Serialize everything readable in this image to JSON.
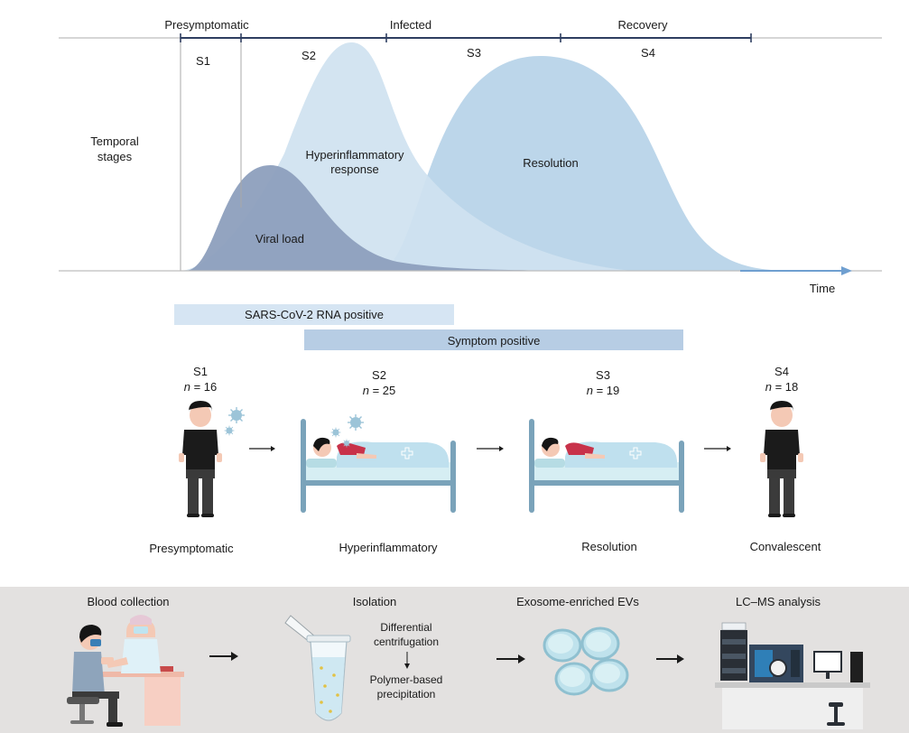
{
  "timeline": {
    "phases": [
      "Presymptomatic",
      "Infected",
      "Recovery"
    ],
    "stages": [
      "S1",
      "S2",
      "S3",
      "S4"
    ],
    "row_label_line1": "Temporal",
    "row_label_line2": "stages",
    "time_label": "Time"
  },
  "curves": {
    "viral_load": "Viral load",
    "hyper_line1": "Hyperinflammatory",
    "hyper_line2": "response",
    "resolution": "Resolution",
    "colors": {
      "viral": "#8d9fbd",
      "hyper": "#cfe2f0",
      "resolution": "#bcd6ea"
    }
  },
  "bars": {
    "rna": "SARS-CoV-2 RNA positive",
    "symptom": "Symptom positive",
    "colors": {
      "rna": "#d6e5f3",
      "symptom": "#b7cde4"
    }
  },
  "stage_groups": [
    {
      "stage": "S1",
      "n_label": "n",
      "n_value": "= 16",
      "caption": "Presymptomatic"
    },
    {
      "stage": "S2",
      "n_label": "n",
      "n_value": "= 25",
      "caption": "Hyperinflammatory"
    },
    {
      "stage": "S3",
      "n_label": "n",
      "n_value": "= 19",
      "caption": "Resolution"
    },
    {
      "stage": "S4",
      "n_label": "n",
      "n_value": "= 18",
      "caption": "Convalescent"
    }
  ],
  "workflow": {
    "steps": [
      "Blood collection",
      "Isolation",
      "Exosome-enriched EVs",
      "LC–MS analysis"
    ],
    "isolation_step1_line1": "Differential",
    "isolation_step1_line2": "centrifugation",
    "isolation_step2_line1": "Polymer-based",
    "isolation_step2_line2": "precipitation",
    "panel_color": "#e3e1e0"
  }
}
